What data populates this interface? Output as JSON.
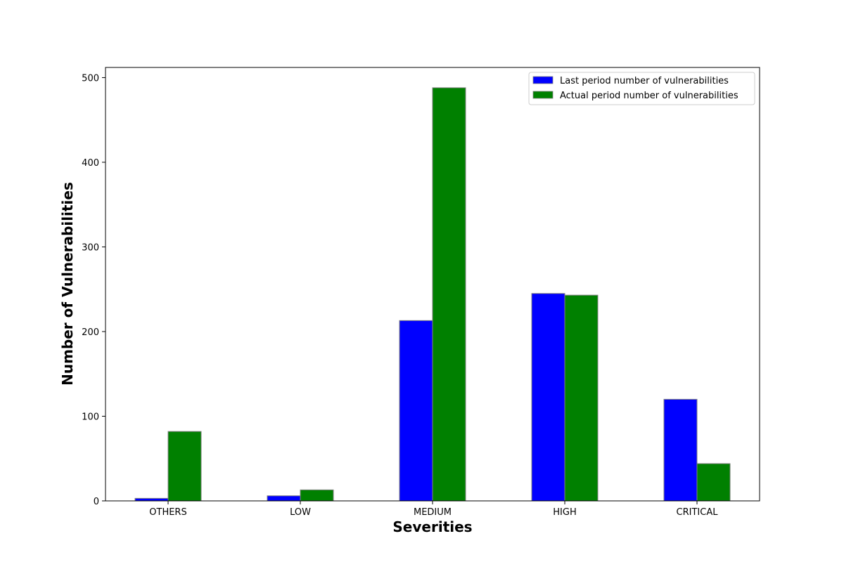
{
  "chart_data": {
    "type": "bar",
    "title": "",
    "xlabel": "Severities",
    "ylabel": "Number of Vulnerabilities",
    "categories": [
      "OTHERS",
      "LOW",
      "MEDIUM",
      "HIGH",
      "CRITICAL"
    ],
    "series": [
      {
        "name": "Last period number of vulnerabilities",
        "color": "#0000ff",
        "values": [
          3,
          6,
          213,
          245,
          120
        ]
      },
      {
        "name": "Actual period number of vulnerabilities",
        "color": "#008000",
        "values": [
          82,
          13,
          488,
          243,
          44
        ]
      }
    ],
    "ylim": [
      0,
      512
    ],
    "yticks": [
      0,
      100,
      200,
      300,
      400,
      500
    ],
    "grid": false,
    "legend_position": "top-right",
    "bar_edge_color": "#808080"
  }
}
